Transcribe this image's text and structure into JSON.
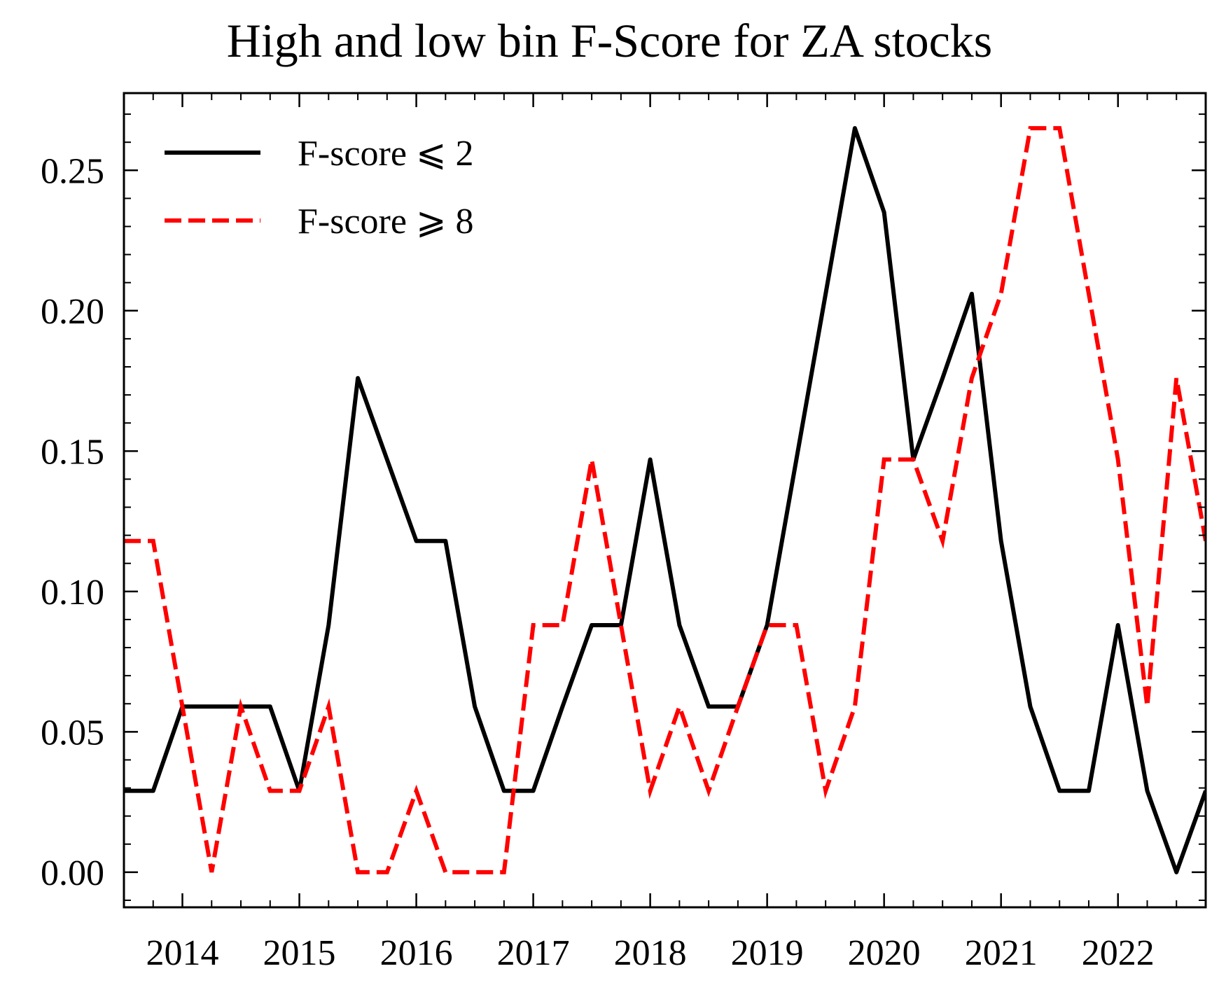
{
  "chart_data": {
    "type": "line",
    "title": "High and low bin F-Score for ZA stocks",
    "xlabel": "",
    "ylabel": "",
    "x": [
      2013.5,
      2013.75,
      2014.0,
      2014.25,
      2014.5,
      2014.75,
      2015.0,
      2015.25,
      2015.5,
      2015.75,
      2016.0,
      2016.25,
      2016.5,
      2016.75,
      2017.0,
      2017.25,
      2017.5,
      2017.75,
      2018.0,
      2018.25,
      2018.5,
      2018.75,
      2019.0,
      2019.25,
      2019.5,
      2019.75,
      2020.0,
      2020.25,
      2020.5,
      2020.75,
      2021.0,
      2021.25,
      2021.5,
      2021.75,
      2022.0,
      2022.25,
      2022.5,
      2022.75
    ],
    "series": [
      {
        "name": "F-score ⩽ 2",
        "color": "#000000",
        "style": "solid",
        "values": [
          0.029,
          0.029,
          0.059,
          0.059,
          0.059,
          0.059,
          0.029,
          0.088,
          0.176,
          0.147,
          0.118,
          0.118,
          0.059,
          0.029,
          0.029,
          0.059,
          0.088,
          0.088,
          0.147,
          0.088,
          0.059,
          0.059,
          0.088,
          0.147,
          0.206,
          0.265,
          0.235,
          0.147,
          0.176,
          0.206,
          0.118,
          0.059,
          0.029,
          0.029,
          0.088,
          0.029,
          0.0,
          0.029
        ]
      },
      {
        "name": "F-score ⩾ 8",
        "color": "#ff0000",
        "style": "dashed",
        "values": [
          0.118,
          0.118,
          0.059,
          0.0,
          0.059,
          0.029,
          0.029,
          0.059,
          0.0,
          0.0,
          0.029,
          0.0,
          0.0,
          0.0,
          0.088,
          0.088,
          0.147,
          0.088,
          0.029,
          0.059,
          0.029,
          0.059,
          0.088,
          0.088,
          0.029,
          0.059,
          0.147,
          0.147,
          0.118,
          0.176,
          0.206,
          0.265,
          0.265,
          0.206,
          0.147,
          0.059,
          0.176,
          0.118
        ]
      }
    ],
    "xlim": [
      2013.5,
      2022.75
    ],
    "ylim": [
      -0.0125,
      0.2775
    ],
    "xticks": [
      2014,
      2015,
      2016,
      2017,
      2018,
      2019,
      2020,
      2021,
      2022
    ],
    "xtick_labels": [
      "2014",
      "2015",
      "2016",
      "2017",
      "2018",
      "2019",
      "2020",
      "2021",
      "2022"
    ],
    "yticks": [
      0.0,
      0.05,
      0.1,
      0.15,
      0.2,
      0.25
    ],
    "ytick_labels": [
      "0.00",
      "0.05",
      "0.10",
      "0.15",
      "0.20",
      "0.25"
    ],
    "grid": false,
    "legend_position": "top-left"
  }
}
